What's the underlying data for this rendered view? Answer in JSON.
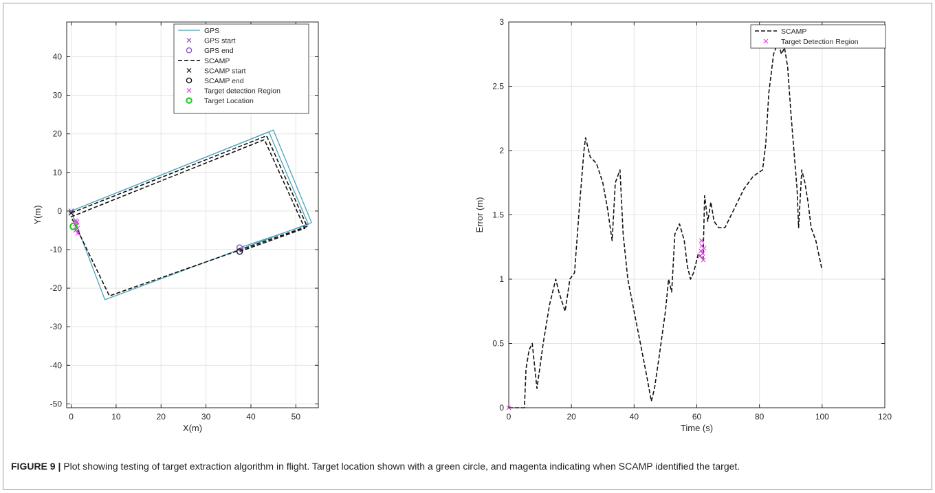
{
  "caption": {
    "label": "FIGURE 9 |",
    "text": " Plot showing testing of target extraction algorithm in flight. Target location shown with a green circle, and magenta indicating when SCAMP identified the target."
  },
  "colors": {
    "gps": "#4aa3b8",
    "scamp": "#111111",
    "gps_marker": "#8a55c8",
    "target_region": "#e040e0",
    "target_location": "#22cc22",
    "grid": "#e3e3e3",
    "axis": "#262626"
  },
  "chart_data": [
    {
      "type": "line",
      "xlabel": "X(m)",
      "ylabel": "Y(m)",
      "xlim": [
        -1,
        55
      ],
      "ylim": [
        -51,
        49
      ],
      "xticks": [
        0,
        10,
        20,
        30,
        40,
        50
      ],
      "yticks": [
        -50,
        -40,
        -30,
        -20,
        -10,
        0,
        10,
        20,
        30,
        40
      ],
      "grid": true,
      "legend_position": "top-right",
      "legend": [
        "GPS",
        "GPS start",
        "GPS end",
        "SCAMP",
        "SCAMP start",
        "SCAMP end",
        "Target detection Region",
        "Target Location"
      ],
      "series": [
        {
          "name": "GPS",
          "style": "solid",
          "color": "#4aa3b8",
          "x": [
            0,
            45,
            53.5,
            7.5,
            0,
            44,
            52.8,
            37.5
          ],
          "y": [
            0,
            21,
            -3,
            -23,
            0,
            20.5,
            -3.5,
            -9.5
          ]
        },
        {
          "name": "SCAMP",
          "style": "dashed",
          "color": "#111111",
          "x": [
            0,
            43.5,
            52.5,
            8.5,
            0,
            43,
            52,
            37.5
          ],
          "y": [
            -0.5,
            19.5,
            -4,
            -22,
            -1.5,
            18.5,
            -4.5,
            -10.5
          ]
        }
      ],
      "markers": [
        {
          "name": "GPS start",
          "shape": "x",
          "x": 0,
          "y": 0,
          "color": "#8a55c8"
        },
        {
          "name": "GPS end",
          "shape": "circle",
          "x": 37.5,
          "y": -9.5,
          "color": "#8a55c8"
        },
        {
          "name": "SCAMP start",
          "shape": "x",
          "x": 0,
          "y": -0.5,
          "color": "#111111"
        },
        {
          "name": "SCAMP end",
          "shape": "circle",
          "x": 37.5,
          "y": -10.5,
          "color": "#111111"
        },
        {
          "name": "Target Location",
          "shape": "circle",
          "x": 0.5,
          "y": -4,
          "color": "#22cc22"
        }
      ],
      "target_detection_points": {
        "x": [
          1.0,
          1.2,
          0.9,
          1.3,
          1.1,
          1.4,
          1.0,
          1.5
        ],
        "y": [
          -2.5,
          -3.0,
          -3.3,
          -2.8,
          -3.8,
          -4.5,
          -5.0,
          -5.8
        ]
      }
    },
    {
      "type": "line",
      "xlabel": "Time (s)",
      "ylabel": "Error (m)",
      "xlim": [
        0,
        120
      ],
      "ylim": [
        0,
        3
      ],
      "xticks": [
        0,
        20,
        40,
        60,
        80,
        100,
        120
      ],
      "yticks": [
        0,
        0.5,
        1,
        1.5,
        2,
        2.5,
        3
      ],
      "grid": true,
      "legend_position": "top-right",
      "legend": [
        "SCAMP",
        "Target Detection Region"
      ],
      "series": [
        {
          "name": "SCAMP",
          "style": "dashed",
          "color": "#111111",
          "x": [
            0,
            5,
            5.5,
            6.5,
            7.5,
            9,
            11,
            13,
            15,
            16,
            18,
            19.5,
            21,
            22.5,
            24,
            24.5,
            26,
            28,
            30,
            31.5,
            33,
            34,
            35.5,
            36.5,
            38,
            40,
            42,
            44,
            45.5,
            46.5,
            48,
            50,
            51,
            52,
            53,
            54.5,
            56,
            57,
            58,
            59,
            60.5,
            62,
            62.5,
            63.5,
            64.5,
            65.5,
            67,
            69,
            72,
            75,
            78,
            81,
            82,
            83,
            84.5,
            86,
            87,
            88,
            89,
            90,
            91,
            92,
            92.5,
            93.5,
            94.5,
            95.5,
            96.5,
            98,
            100
          ],
          "y": [
            0,
            0,
            0.3,
            0.45,
            0.5,
            0.15,
            0.5,
            0.8,
            1.0,
            0.9,
            0.75,
            1.0,
            1.05,
            1.55,
            2.0,
            2.1,
            1.95,
            1.9,
            1.75,
            1.55,
            1.3,
            1.75,
            1.85,
            1.35,
            1.0,
            0.75,
            0.5,
            0.25,
            0.05,
            0.15,
            0.4,
            0.75,
            1.0,
            0.9,
            1.35,
            1.43,
            1.3,
            1.1,
            1.0,
            1.05,
            1.2,
            1.15,
            1.65,
            1.45,
            1.6,
            1.45,
            1.4,
            1.4,
            1.55,
            1.7,
            1.8,
            1.85,
            2.05,
            2.45,
            2.75,
            2.85,
            2.75,
            2.8,
            2.65,
            2.3,
            2.0,
            1.7,
            1.4,
            1.85,
            1.75,
            1.6,
            1.4,
            1.3,
            1.07
          ]
        }
      ],
      "target_detection_points": {
        "x": [
          0,
          61.0,
          61.3,
          61.6,
          61.9,
          62.1,
          61.5,
          62.3
        ],
        "y": [
          0,
          1.18,
          1.22,
          1.26,
          1.2,
          1.15,
          1.3,
          1.24
        ]
      }
    }
  ]
}
